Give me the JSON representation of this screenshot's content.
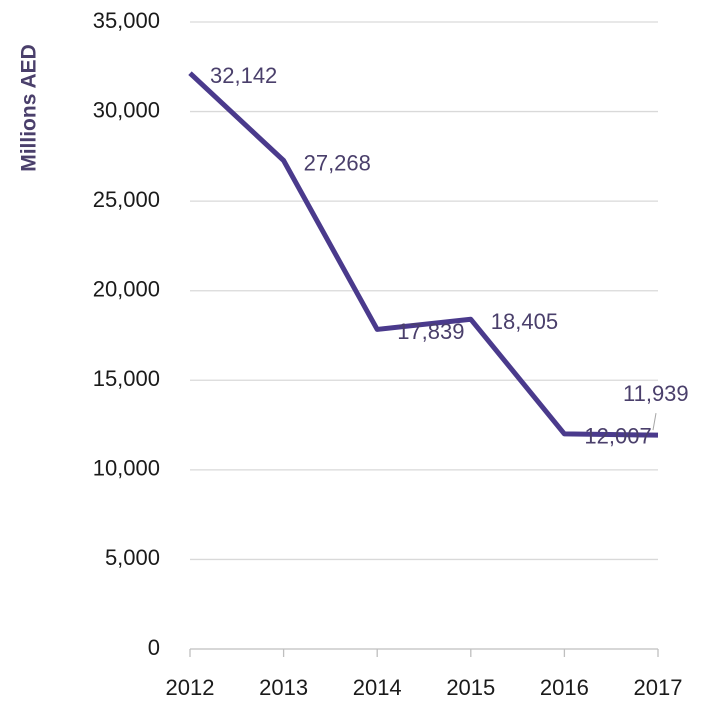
{
  "chart_data": {
    "type": "line",
    "y_axis_label": "Millions AED",
    "categories": [
      "2012",
      "2013",
      "2014",
      "2015",
      "2016",
      "2017"
    ],
    "series": [
      {
        "color": "#4a3a8c",
        "values": [
          32142,
          27268,
          17839,
          18405,
          12007,
          11939
        ],
        "value_labels": [
          "32,142",
          "27,268",
          "17,839",
          "18,405",
          "12,007",
          "11,939"
        ]
      }
    ],
    "ylim": [
      0,
      35000
    ],
    "yticks": [
      0,
      {
        "value": 5000,
        "label": "5,000"
      },
      {
        "value": 10000,
        "label": "10,000"
      },
      {
        "value": 15000,
        "label": "15,000"
      },
      {
        "value": 20000,
        "label": "20,000"
      },
      {
        "value": 25000,
        "label": "25,000"
      },
      {
        "value": 30000,
        "label": "30,000"
      },
      {
        "value": 35000,
        "label": "35,000"
      }
    ],
    "grid": true
  }
}
